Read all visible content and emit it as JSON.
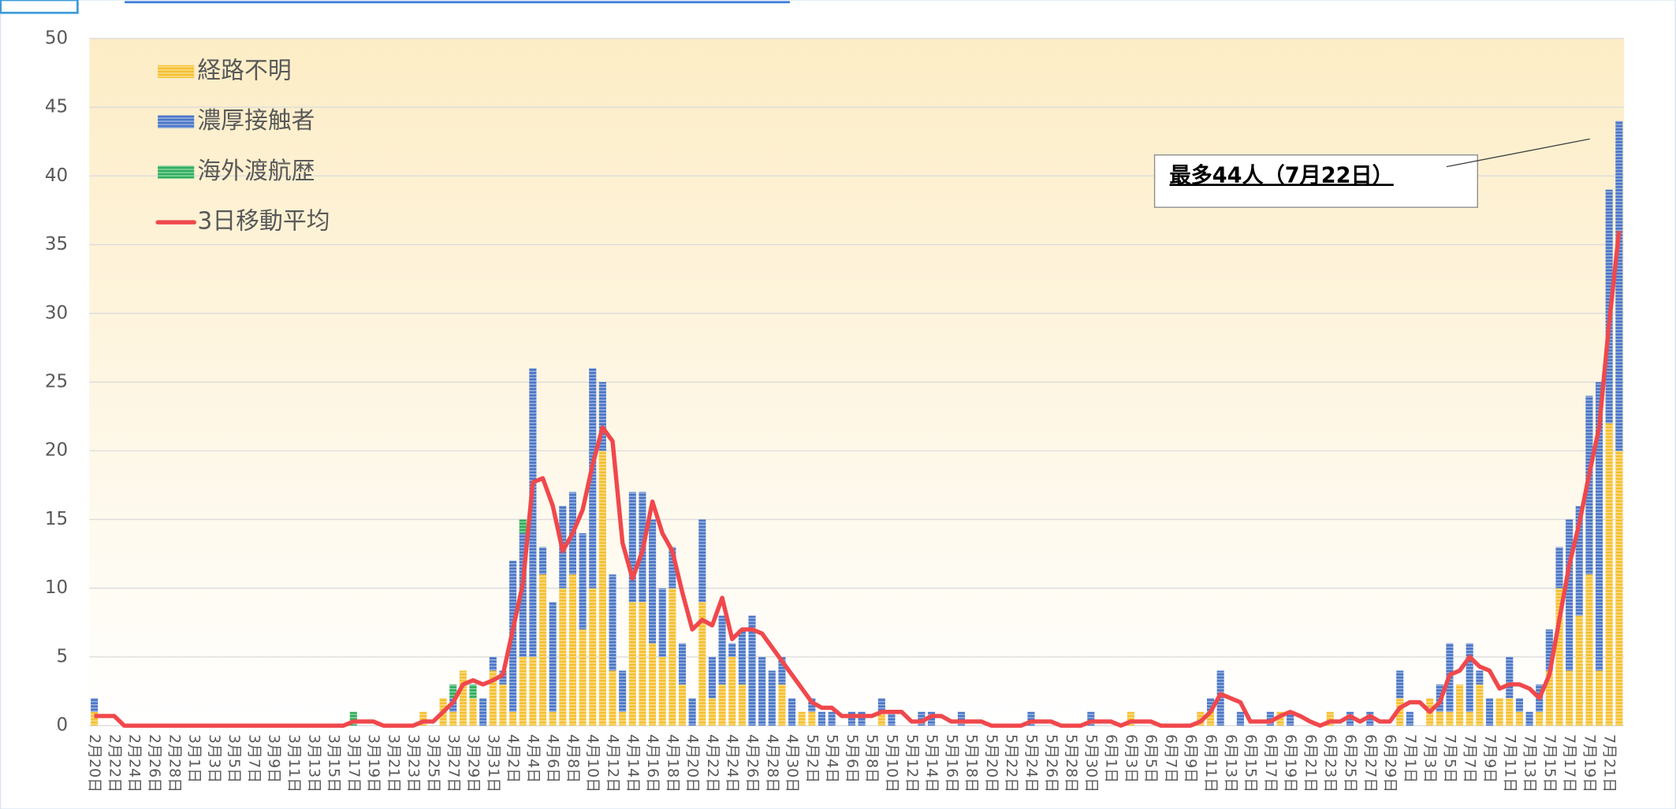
{
  "chart_data": {
    "type": "bar",
    "stacked": true,
    "grid": true,
    "annotation": "最多44人（7月22日）",
    "ylim": [
      0,
      50
    ],
    "yticks": [
      0,
      5,
      10,
      15,
      20,
      25,
      30,
      35,
      40,
      45,
      50
    ],
    "categories": [
      "2月20日",
      null,
      "2月22日",
      null,
      "2月24日",
      null,
      "2月26日",
      null,
      "2月28日",
      null,
      "3月1日",
      null,
      "3月3日",
      null,
      "3月5日",
      null,
      "3月7日",
      null,
      "3月9日",
      null,
      "3月11日",
      null,
      "3月13日",
      null,
      "3月15日",
      null,
      "3月17日",
      null,
      "3月19日",
      null,
      "3月21日",
      null,
      "3月23日",
      null,
      "3月25日",
      null,
      "3月27日",
      null,
      "3月29日",
      null,
      "3月31日",
      null,
      "4月2日",
      null,
      "4月4日",
      null,
      "4月6日",
      null,
      "4月8日",
      null,
      "4月10日",
      null,
      "4月12日",
      null,
      "4月14日",
      null,
      "4月16日",
      null,
      "4月18日",
      null,
      "4月20日",
      null,
      "4月22日",
      null,
      "4月24日",
      null,
      "4月26日",
      null,
      "4月28日",
      null,
      "4月30日",
      null,
      "5月2日",
      null,
      "5月4日",
      null,
      "5月6日",
      null,
      "5月8日",
      null,
      "5月10日",
      null,
      "5月12日",
      null,
      "5月14日",
      null,
      "5月16日",
      null,
      "5月18日",
      null,
      "5月20日",
      null,
      "5月22日",
      null,
      "5月24日",
      null,
      "5月26日",
      null,
      "5月28日",
      null,
      "5月30日",
      null,
      "6月1日",
      null,
      "6月3日",
      null,
      "6月5日",
      null,
      "6月7日",
      null,
      "6月9日",
      null,
      "6月11日",
      null,
      "6月13日",
      null,
      "6月15日",
      null,
      "6月17日",
      null,
      "6月19日",
      null,
      "6月21日",
      null,
      "6月23日",
      null,
      "6月25日",
      null,
      "6月27日",
      null,
      "6月29日",
      null,
      "7月1日",
      null,
      "7月3日",
      null,
      "7月5日",
      null,
      "7月7日",
      null,
      "7月9日",
      null,
      "7月11日",
      null,
      "7月13日",
      null,
      "7月15日",
      null,
      "7月17日",
      null,
      "7月19日",
      null,
      "7月21日",
      null
    ],
    "series": [
      {
        "name": "経路不明",
        "color": "#f5c030",
        "values": [
          1,
          0,
          0,
          0,
          0,
          0,
          0,
          0,
          0,
          0,
          0,
          0,
          0,
          0,
          0,
          0,
          0,
          0,
          0,
          0,
          0,
          0,
          0,
          0,
          0,
          0,
          0,
          0,
          0,
          0,
          0,
          0,
          0,
          1,
          0,
          2,
          1,
          4,
          2,
          0,
          4,
          3,
          1,
          5,
          5,
          11,
          1,
          10,
          11,
          7,
          10,
          20,
          4,
          1,
          9,
          9,
          6,
          5,
          10,
          3,
          0,
          9,
          2,
          3,
          5,
          3,
          0,
          0,
          0,
          3,
          0,
          1,
          1,
          0,
          0,
          0,
          0,
          0,
          0,
          1,
          0,
          0,
          0,
          0,
          0,
          0,
          0,
          0,
          0,
          0,
          0,
          0,
          0,
          0,
          0,
          0,
          0,
          0,
          0,
          0,
          0,
          0,
          0,
          0,
          1,
          0,
          0,
          0,
          0,
          0,
          0,
          1,
          1,
          0,
          0,
          0,
          0,
          0,
          0,
          1,
          0,
          0,
          0,
          0,
          1,
          0,
          0,
          0,
          0,
          0,
          0,
          2,
          0,
          0,
          2,
          1,
          1,
          3,
          1,
          3,
          0,
          2,
          2,
          1,
          0,
          1,
          4,
          10,
          4,
          8,
          11,
          4,
          22,
          20
        ]
      },
      {
        "name": "濃厚接触者",
        "color": "#4a76c6",
        "values": [
          1,
          0,
          0,
          0,
          0,
          0,
          0,
          0,
          0,
          0,
          0,
          0,
          0,
          0,
          0,
          0,
          0,
          0,
          0,
          0,
          0,
          0,
          0,
          0,
          0,
          0,
          0,
          0,
          0,
          0,
          0,
          0,
          0,
          0,
          0,
          0,
          1,
          0,
          0,
          2,
          1,
          1,
          11,
          9,
          21,
          2,
          8,
          6,
          6,
          7,
          16,
          5,
          7,
          3,
          8,
          8,
          9,
          5,
          3,
          3,
          2,
          6,
          3,
          5,
          1,
          4,
          8,
          5,
          4,
          2,
          2,
          0,
          1,
          1,
          1,
          0,
          1,
          1,
          0,
          1,
          1,
          0,
          0,
          1,
          1,
          0,
          0,
          1,
          0,
          0,
          0,
          0,
          0,
          0,
          1,
          0,
          0,
          0,
          0,
          0,
          1,
          0,
          0,
          0,
          0,
          0,
          0,
          0,
          0,
          0,
          0,
          0,
          1,
          4,
          0,
          1,
          0,
          0,
          1,
          0,
          1,
          0,
          0,
          0,
          0,
          0,
          1,
          0,
          1,
          0,
          0,
          2,
          1,
          0,
          0,
          2,
          5,
          0,
          5,
          1,
          2,
          0,
          3,
          1,
          1,
          2,
          3,
          3,
          11,
          8,
          13,
          21,
          17,
          24
        ]
      },
      {
        "name": "海外渡航歴",
        "color": "#2fae5c",
        "values": [
          0,
          0,
          0,
          0,
          0,
          0,
          0,
          0,
          0,
          0,
          0,
          0,
          0,
          0,
          0,
          0,
          0,
          0,
          0,
          0,
          0,
          0,
          0,
          0,
          0,
          0,
          1,
          0,
          0,
          0,
          0,
          0,
          0,
          0,
          0,
          0,
          1,
          0,
          1,
          0,
          0,
          0,
          0,
          1,
          0,
          0,
          0,
          0,
          0,
          0,
          0,
          0,
          0,
          0,
          0,
          0,
          0,
          0,
          0,
          0,
          0,
          0,
          0,
          0,
          0,
          0,
          0,
          0,
          0,
          0,
          0,
          0,
          0,
          0,
          0,
          0,
          0,
          0,
          0,
          0,
          0,
          0,
          0,
          0,
          0,
          0,
          0,
          0,
          0,
          0,
          0,
          0,
          0,
          0,
          0,
          0,
          0,
          0,
          0,
          0,
          0,
          0,
          0,
          0,
          0,
          0,
          0,
          0,
          0,
          0,
          0,
          0,
          0,
          0,
          0,
          0,
          0,
          0,
          0,
          0,
          0,
          0,
          0,
          0,
          0,
          0,
          0,
          0,
          0,
          0,
          0,
          0,
          0,
          0,
          0,
          0,
          0,
          0,
          0,
          0,
          0,
          0,
          0,
          0,
          0,
          0,
          0,
          0,
          0,
          0,
          0,
          0,
          0,
          0
        ]
      },
      {
        "name": "3日移動平均",
        "type": "line",
        "color": "#f0484c",
        "values": [
          0.7,
          0.7,
          0.7,
          0,
          0,
          0,
          0,
          0,
          0,
          0,
          0,
          0,
          0,
          0,
          0,
          0,
          0,
          0,
          0,
          0,
          0,
          0,
          0,
          0,
          0,
          0,
          0.3,
          0.3,
          0.3,
          0,
          0,
          0,
          0,
          0.3,
          0.3,
          1.0,
          1.7,
          3.0,
          3.3,
          3.0,
          3.3,
          3.7,
          7.0,
          10.3,
          17.7,
          18.0,
          16.0,
          12.7,
          14.0,
          15.7,
          19.0,
          21.7,
          20.7,
          13.3,
          10.7,
          12.7,
          16.3,
          14.0,
          12.7,
          9.7,
          7.0,
          7.7,
          7.3,
          9.3,
          6.3,
          7.0,
          7.0,
          6.7,
          5.7,
          4.7,
          3.7,
          2.7,
          1.7,
          1.3,
          1.3,
          0.7,
          0.7,
          0.7,
          0.7,
          1.0,
          1.0,
          1.0,
          0.3,
          0.3,
          0.7,
          0.7,
          0.3,
          0.3,
          0.3,
          0.3,
          0,
          0,
          0,
          0,
          0.3,
          0.3,
          0.3,
          0,
          0,
          0,
          0.3,
          0.3,
          0.3,
          0,
          0.3,
          0.3,
          0.3,
          0,
          0,
          0,
          0,
          0.3,
          1.0,
          2.3,
          2.0,
          1.7,
          0.3,
          0.3,
          0.3,
          0.7,
          1.0,
          0.7,
          0.3,
          0,
          0.3,
          0.3,
          0.7,
          0.3,
          0.7,
          0.3,
          0.3,
          1.3,
          1.7,
          1.7,
          1.0,
          1.7,
          3.7,
          4.0,
          5.0,
          4.3,
          4.0,
          2.7,
          3.0,
          3.0,
          2.7,
          2.0,
          3.7,
          7.7,
          11.7,
          14.7,
          18.3,
          21.7,
          29.3,
          36.0
        ]
      }
    ]
  }
}
